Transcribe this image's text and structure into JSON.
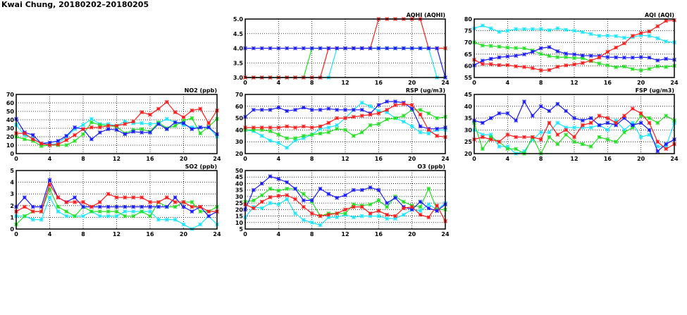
{
  "title": "Kwai Chung, 20180202–20180205",
  "colors": {
    "red": "#ff1a1a",
    "blue": "#1a1aff",
    "green": "#22e022",
    "cyan": "#1ae6ff"
  },
  "chart_data": [
    {
      "id": "aqhi",
      "type": "line",
      "title": "AQHI (AQHI)",
      "xlim": [
        0,
        24
      ],
      "xticks": [
        0,
        4,
        8,
        12,
        16,
        20,
        24
      ],
      "ylim": [
        3,
        5
      ],
      "yticks": [
        "3.0",
        "3.5",
        "4.0",
        "4.5",
        "5.0"
      ],
      "grid": true,
      "series": [
        {
          "color": "green",
          "values": [
            3,
            3,
            3,
            3,
            3,
            3,
            3,
            3,
            4,
            4,
            4,
            4,
            4,
            4,
            4,
            4,
            4,
            4,
            4,
            4,
            4,
            4,
            4,
            4,
            4
          ]
        },
        {
          "color": "cyan",
          "values": [
            3,
            3,
            3,
            3,
            3,
            3,
            3,
            3,
            3,
            3,
            3,
            4,
            4,
            4,
            4,
            4,
            4,
            4,
            4,
            4,
            4,
            4,
            4,
            3,
            3
          ]
        },
        {
          "color": "red",
          "values": [
            3,
            3,
            3,
            3,
            3,
            3,
            3,
            3,
            3,
            3,
            4,
            4,
            4,
            4,
            4,
            4,
            5,
            5,
            5,
            5,
            5,
            5,
            4,
            4,
            4
          ]
        },
        {
          "color": "blue",
          "values": [
            4,
            4,
            4,
            4,
            4,
            4,
            4,
            4,
            4,
            4,
            4,
            4,
            4,
            4,
            4,
            4,
            4,
            4,
            4,
            4,
            4,
            4,
            4,
            4,
            3
          ]
        }
      ]
    },
    {
      "id": "aqi",
      "type": "line",
      "title": "AQI (AQI)",
      "xlim": [
        0,
        24
      ],
      "xticks": [
        0,
        4,
        8,
        12,
        16,
        20,
        24
      ],
      "ylim": [
        55,
        80
      ],
      "yticks": [
        "55",
        "60",
        "65",
        "70",
        "75",
        "80"
      ],
      "grid": true,
      "series": [
        {
          "color": "cyan",
          "values": [
            76,
            77.2,
            76,
            74.5,
            75,
            75.7,
            75.7,
            75.7,
            75.7,
            75.2,
            76,
            75.4,
            75,
            74.4,
            73.6,
            72.8,
            72.9,
            72.7,
            72,
            72.3,
            73,
            72.8,
            71.8,
            70.4,
            70
          ]
        },
        {
          "color": "green",
          "values": [
            70,
            68.7,
            68.5,
            68.2,
            67.8,
            67.6,
            67.5,
            66.6,
            65.1,
            64.2,
            63.7,
            63.7,
            63.3,
            63.3,
            62,
            61,
            60.2,
            59.4,
            59.7,
            58.6,
            58.1,
            58.7,
            59.8,
            59.5,
            60
          ]
        },
        {
          "color": "blue",
          "values": [
            60.2,
            62.2,
            63,
            63.6,
            64,
            64.3,
            64.9,
            66,
            67.5,
            68,
            66.2,
            65.2,
            64.9,
            64.4,
            64.3,
            64.2,
            63.7,
            63.6,
            63.5,
            63.5,
            63.7,
            63.5,
            62.3,
            63,
            62.6
          ]
        },
        {
          "color": "red",
          "values": [
            62.6,
            60.8,
            60.7,
            60.3,
            60.3,
            59.8,
            59.5,
            59,
            58.1,
            58.2,
            59.6,
            60.2,
            60.6,
            61.2,
            62.2,
            63.6,
            66,
            67.8,
            69.6,
            72.8,
            74,
            74.7,
            76.9,
            79.2,
            79.5
          ]
        }
      ]
    },
    {
      "id": "no2",
      "type": "line",
      "title": "NO2 (ppb)",
      "xlim": [
        0,
        24
      ],
      "xticks": [
        0,
        4,
        8,
        12,
        16,
        20,
        24
      ],
      "ylim": [
        0,
        70
      ],
      "yticks": [
        "0",
        "10",
        "20",
        "30",
        "40",
        "50",
        "60",
        "70"
      ],
      "grid": true,
      "series": [
        {
          "color": "cyan",
          "values": [
            34,
            22,
            18,
            12,
            11,
            12,
            20,
            29,
            34,
            41,
            35,
            35,
            33,
            38,
            36,
            36,
            35,
            36,
            41,
            37,
            34,
            31,
            31,
            31,
            20
          ]
        },
        {
          "color": "green",
          "values": [
            20,
            17,
            15,
            9,
            10,
            10,
            10,
            15,
            23,
            37,
            34,
            33,
            32,
            24,
            28,
            29,
            26,
            37,
            30,
            33,
            39,
            42,
            24,
            32,
            41
          ]
        },
        {
          "color": "blue",
          "values": [
            41,
            25,
            22,
            12,
            13,
            15,
            21,
            31,
            29,
            17,
            25,
            29,
            28,
            23,
            26,
            25,
            25,
            35,
            29,
            37,
            36,
            29,
            31,
            31,
            23
          ]
        },
        {
          "color": "red",
          "values": [
            24,
            24,
            17,
            12,
            10,
            11,
            16,
            22,
            29,
            31,
            31,
            33,
            33,
            35,
            38,
            49,
            46,
            53,
            61,
            49,
            43,
            51,
            53,
            36,
            51
          ]
        }
      ]
    },
    {
      "id": "rsp",
      "type": "line",
      "title": "RSP (ug/m3)",
      "xlim": [
        0,
        24
      ],
      "xticks": [
        0,
        4,
        8,
        12,
        16,
        20,
        24
      ],
      "ylim": [
        20,
        70
      ],
      "yticks": [
        "20",
        "30",
        "40",
        "50",
        "60",
        "70"
      ],
      "grid": true,
      "series": [
        {
          "color": "cyan",
          "values": [
            40,
            39,
            35,
            31,
            29,
            25,
            31,
            33,
            36,
            41,
            42,
            44,
            50,
            57,
            63,
            60,
            56,
            55,
            50,
            47,
            43,
            38,
            37,
            40,
            40
          ]
        },
        {
          "color": "green",
          "values": [
            40,
            40,
            40,
            39,
            36,
            33,
            33,
            35,
            36,
            37,
            38,
            41,
            40,
            35,
            38,
            44,
            45,
            49,
            50,
            52,
            57,
            57,
            54,
            50,
            51
          ]
        },
        {
          "color": "blue",
          "values": [
            51,
            57,
            57,
            57,
            59,
            56,
            57,
            59,
            57,
            57,
            58,
            57,
            57,
            57,
            57,
            54,
            61,
            64,
            64,
            63,
            58,
            43,
            41,
            41,
            42
          ]
        },
        {
          "color": "red",
          "values": [
            42,
            42,
            42,
            42,
            42,
            43,
            42,
            43,
            42,
            43,
            46,
            50,
            50,
            51,
            52,
            53,
            54,
            57,
            61,
            62,
            61,
            53,
            40,
            35,
            34
          ]
        }
      ]
    },
    {
      "id": "fsp",
      "type": "line",
      "title": "FSP (ug/m3)",
      "xlim": [
        0,
        24
      ],
      "xticks": [
        0,
        4,
        8,
        12,
        16,
        20,
        24
      ],
      "ylim": [
        20,
        45
      ],
      "yticks": [
        "20",
        "25",
        "30",
        "35",
        "40",
        "45"
      ],
      "grid": true,
      "series": [
        {
          "color": "cyan",
          "values": [
            30,
            28,
            28,
            23,
            23,
            20,
            21,
            26,
            29,
            29,
            33,
            31,
            31,
            31,
            31,
            32,
            30,
            34,
            30,
            33,
            27,
            28,
            23,
            23,
            33
          ]
        },
        {
          "color": "green",
          "values": [
            33,
            22,
            27,
            25,
            22,
            22,
            20,
            27,
            20,
            27,
            24,
            28,
            25,
            24,
            23,
            27,
            26,
            25,
            29,
            31,
            36,
            35,
            33,
            36,
            34
          ]
        },
        {
          "color": "blue",
          "values": [
            34,
            33,
            35,
            37,
            37,
            34,
            42,
            36,
            40,
            38,
            41,
            38,
            35,
            34,
            35,
            32,
            33,
            32,
            35,
            32,
            33,
            30,
            21,
            24,
            26
          ]
        },
        {
          "color": "red",
          "values": [
            26,
            27,
            26,
            25,
            28,
            27,
            27,
            27,
            26,
            33,
            28,
            30,
            27,
            32,
            33,
            36,
            35,
            33,
            36,
            39,
            37,
            33,
            25,
            22,
            24
          ]
        }
      ]
    },
    {
      "id": "so2",
      "type": "line",
      "title": "SO2 (ppb)",
      "xlim": [
        0,
        24
      ],
      "xticks": [
        0,
        4,
        8,
        12,
        16,
        20,
        24
      ],
      "ylim": [
        0,
        5
      ],
      "yticks": [
        "0",
        "1",
        "2",
        "3",
        "4",
        "5"
      ],
      "grid": true,
      "series": [
        {
          "color": "cyan",
          "values": [
            1.1,
            1.1,
            0.8,
            0.8,
            2.7,
            1.5,
            1.1,
            1.1,
            1.1,
            1.5,
            1.1,
            1.1,
            1.1,
            1.5,
            1.5,
            1.5,
            1.5,
            0.8,
            0.8,
            0.8,
            0.4,
            0,
            0.4,
            1.1,
            0.4
          ]
        },
        {
          "color": "green",
          "values": [
            0.4,
            1.1,
            1.5,
            1.5,
            3.4,
            1.9,
            1.5,
            1.1,
            1.9,
            1.5,
            1.5,
            1.5,
            1.5,
            1.1,
            1.1,
            1.5,
            1.1,
            2.3,
            1.9,
            1.9,
            2.3,
            2.3,
            1.5,
            1.5,
            1.9
          ]
        },
        {
          "color": "blue",
          "values": [
            1.9,
            2.7,
            1.9,
            1.9,
            4.2,
            2.7,
            2.3,
            2.7,
            1.9,
            1.9,
            1.9,
            1.9,
            1.9,
            1.9,
            1.9,
            1.9,
            1.9,
            1.9,
            1.9,
            2.7,
            1.9,
            1.5,
            1.9,
            1.1,
            1.5
          ]
        },
        {
          "color": "red",
          "values": [
            1.5,
            1.9,
            1.5,
            1.5,
            3.8,
            2.7,
            2.3,
            2.3,
            2.3,
            1.9,
            2.3,
            3.0,
            2.7,
            2.7,
            2.7,
            2.7,
            2.3,
            2.3,
            2.7,
            2.3,
            2.3,
            1.9,
            1.9,
            1.5,
            1.5
          ]
        }
      ]
    },
    {
      "id": "o3",
      "type": "line",
      "title": "O3 (ppb)",
      "xlim": [
        0,
        24
      ],
      "xticks": [
        0,
        4,
        8,
        12,
        16,
        20,
        24
      ],
      "ylim": [
        5,
        50
      ],
      "yticks": [
        "5",
        "10",
        "15",
        "20",
        "25",
        "30",
        "35",
        "40",
        "45",
        "50"
      ],
      "grid": true,
      "series": [
        {
          "color": "cyan",
          "values": [
            14,
            22,
            21,
            25,
            24,
            28,
            17,
            12,
            10,
            8,
            14,
            14,
            16,
            14,
            15,
            15,
            15,
            13,
            13,
            16,
            20,
            19,
            24,
            20,
            25
          ]
        },
        {
          "color": "green",
          "values": [
            26,
            27,
            31,
            36,
            34.5,
            36,
            36,
            32,
            26,
            15,
            17,
            17,
            17,
            24,
            23,
            24,
            27,
            22,
            30,
            26,
            23,
            22,
            36,
            20,
            20
          ]
        },
        {
          "color": "blue",
          "values": [
            20,
            35,
            40,
            45.5,
            43.5,
            41,
            36,
            27,
            27,
            36,
            32,
            29,
            31,
            35,
            35,
            37,
            35,
            25,
            29,
            22,
            20,
            26,
            21,
            19,
            24
          ]
        },
        {
          "color": "red",
          "values": [
            24,
            21,
            26,
            29.5,
            30.5,
            31,
            28,
            22,
            17,
            15,
            16,
            17,
            20,
            22,
            22,
            17,
            19,
            16,
            15,
            21,
            22,
            16,
            14,
            23,
            11
          ]
        }
      ]
    }
  ]
}
